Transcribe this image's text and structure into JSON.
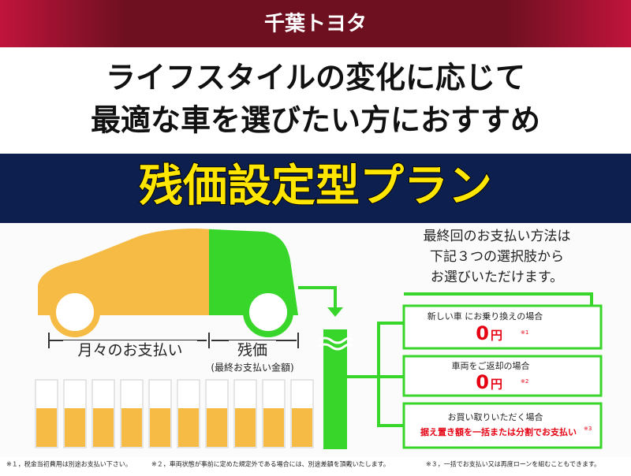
{
  "header": {
    "brand": "千葉トヨタ"
  },
  "headline": {
    "line1": "ライフスタイルの変化に応じて",
    "line2": "最適な車を選びたい方におすすめ"
  },
  "banner": {
    "title": "残価設定型プラン"
  },
  "diagram": {
    "monthly": "月々のお支払い",
    "residual": "残価",
    "residual_note": "(最終お支払い金額)"
  },
  "options": {
    "intro": [
      "最終回のお支払い方法は",
      "下記３つの選択肢から",
      "お選びいただけます。"
    ],
    "items": [
      {
        "label": "新しい車 にお乗り換えの場合",
        "amount": "0",
        "unit": "円",
        "note": "※1"
      },
      {
        "label": "車両をご返却の場合",
        "amount": "0",
        "unit": "円",
        "note": "※2"
      },
      {
        "label": "お買い取りいただく場合",
        "detail": "据え置き額を一括または分割でお支払い",
        "note": "※3"
      }
    ]
  },
  "footnotes": [
    "※１，税金当初費用は別途お支払い下さい。",
    "※２，車両状態が事前に定めた規定外である場合には、別途差額を頂戴いたします。",
    "※３，一括でお支払い又は再度ローンを組むこともできます。"
  ]
}
